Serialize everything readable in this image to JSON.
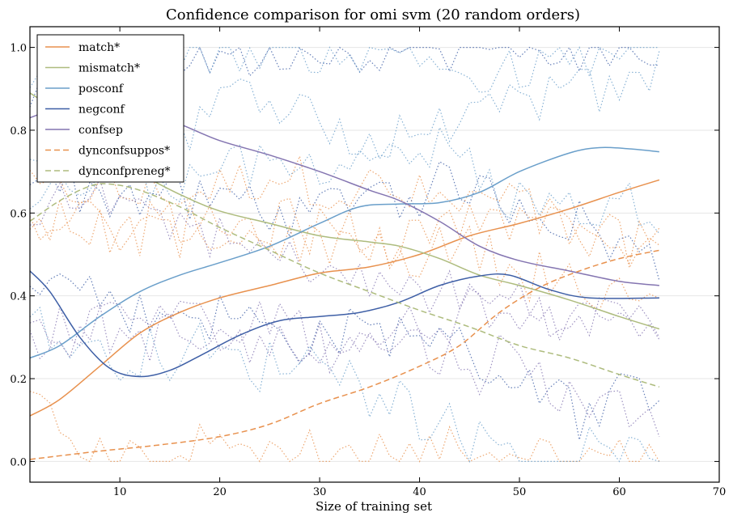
{
  "chart_data": {
    "type": "line",
    "title": "Confidence comparison for omi svm (20 random orders)",
    "xlabel": "Size of training set",
    "ylabel": "",
    "xlim": [
      1,
      70
    ],
    "ylim": [
      -0.05,
      1.05
    ],
    "xticks": [
      10,
      20,
      30,
      40,
      50,
      60,
      70
    ],
    "yticks": [
      0.0,
      0.2,
      0.4,
      0.6,
      0.8,
      1.0
    ],
    "grid": "horizontal",
    "legend_position": "top-left",
    "series": [
      {
        "name": "match*",
        "color": "#e8914e",
        "dash": "solid",
        "points": [
          [
            1,
            0.11
          ],
          [
            4,
            0.15
          ],
          [
            8,
            0.23
          ],
          [
            12,
            0.31
          ],
          [
            16,
            0.36
          ],
          [
            20,
            0.395
          ],
          [
            25,
            0.425
          ],
          [
            30,
            0.455
          ],
          [
            35,
            0.47
          ],
          [
            40,
            0.5
          ],
          [
            45,
            0.545
          ],
          [
            50,
            0.575
          ],
          [
            55,
            0.61
          ],
          [
            60,
            0.65
          ],
          [
            64,
            0.68
          ]
        ]
      },
      {
        "name": "mismatch*",
        "color": "#aebc7e",
        "dash": "solid",
        "points": [
          [
            1,
            0.89
          ],
          [
            4,
            0.84
          ],
          [
            8,
            0.75
          ],
          [
            12,
            0.695
          ],
          [
            16,
            0.645
          ],
          [
            20,
            0.605
          ],
          [
            25,
            0.575
          ],
          [
            30,
            0.545
          ],
          [
            35,
            0.53
          ],
          [
            38,
            0.52
          ],
          [
            42,
            0.49
          ],
          [
            46,
            0.45
          ],
          [
            50,
            0.425
          ],
          [
            55,
            0.39
          ],
          [
            60,
            0.35
          ],
          [
            64,
            0.32
          ]
        ]
      },
      {
        "name": "posconf",
        "color": "#6a9fca",
        "dash": "solid",
        "points": [
          [
            1,
            0.25
          ],
          [
            4,
            0.28
          ],
          [
            8,
            0.35
          ],
          [
            12,
            0.41
          ],
          [
            16,
            0.45
          ],
          [
            20,
            0.48
          ],
          [
            25,
            0.52
          ],
          [
            30,
            0.575
          ],
          [
            34,
            0.615
          ],
          [
            38,
            0.622
          ],
          [
            42,
            0.625
          ],
          [
            46,
            0.65
          ],
          [
            50,
            0.7
          ],
          [
            55,
            0.745
          ],
          [
            58,
            0.758
          ],
          [
            61,
            0.755
          ],
          [
            64,
            0.748
          ]
        ]
      },
      {
        "name": "negconf",
        "color": "#3e5fa6",
        "dash": "solid",
        "points": [
          [
            1,
            0.46
          ],
          [
            3,
            0.41
          ],
          [
            6,
            0.3
          ],
          [
            9,
            0.225
          ],
          [
            12,
            0.205
          ],
          [
            15,
            0.22
          ],
          [
            18,
            0.255
          ],
          [
            22,
            0.305
          ],
          [
            26,
            0.34
          ],
          [
            30,
            0.35
          ],
          [
            34,
            0.36
          ],
          [
            38,
            0.385
          ],
          [
            42,
            0.425
          ],
          [
            46,
            0.448
          ],
          [
            49,
            0.45
          ],
          [
            53,
            0.415
          ],
          [
            57,
            0.395
          ],
          [
            64,
            0.395
          ]
        ]
      },
      {
        "name": "confsep",
        "color": "#8475b1",
        "dash": "solid",
        "points": [
          [
            1,
            0.83
          ],
          [
            4,
            0.855
          ],
          [
            8,
            0.87
          ],
          [
            12,
            0.85
          ],
          [
            16,
            0.815
          ],
          [
            20,
            0.775
          ],
          [
            25,
            0.74
          ],
          [
            30,
            0.7
          ],
          [
            35,
            0.655
          ],
          [
            38,
            0.63
          ],
          [
            42,
            0.58
          ],
          [
            46,
            0.52
          ],
          [
            50,
            0.485
          ],
          [
            55,
            0.46
          ],
          [
            60,
            0.435
          ],
          [
            64,
            0.425
          ]
        ]
      },
      {
        "name": "dynconfsuppos*",
        "color": "#e8914e",
        "dash": "dashed",
        "points": [
          [
            1,
            0.005
          ],
          [
            8,
            0.025
          ],
          [
            14,
            0.04
          ],
          [
            20,
            0.06
          ],
          [
            25,
            0.09
          ],
          [
            30,
            0.14
          ],
          [
            35,
            0.18
          ],
          [
            40,
            0.23
          ],
          [
            44,
            0.28
          ],
          [
            48,
            0.36
          ],
          [
            52,
            0.42
          ],
          [
            56,
            0.46
          ],
          [
            60,
            0.49
          ],
          [
            64,
            0.51
          ]
        ]
      },
      {
        "name": "dynconfpreneg*",
        "color": "#aebc7e",
        "dash": "dashed",
        "points": [
          [
            1,
            0.58
          ],
          [
            4,
            0.63
          ],
          [
            7,
            0.665
          ],
          [
            9,
            0.67
          ],
          [
            12,
            0.655
          ],
          [
            16,
            0.615
          ],
          [
            20,
            0.565
          ],
          [
            25,
            0.51
          ],
          [
            30,
            0.455
          ],
          [
            35,
            0.41
          ],
          [
            40,
            0.365
          ],
          [
            45,
            0.325
          ],
          [
            50,
            0.28
          ],
          [
            55,
            0.25
          ],
          [
            60,
            0.21
          ],
          [
            64,
            0.18
          ]
        ]
      }
    ],
    "dotted_series_count": 14,
    "dotted_colors": [
      "#e8914e",
      "#6a9fca",
      "#3e5fa6",
      "#8475b1"
    ]
  }
}
